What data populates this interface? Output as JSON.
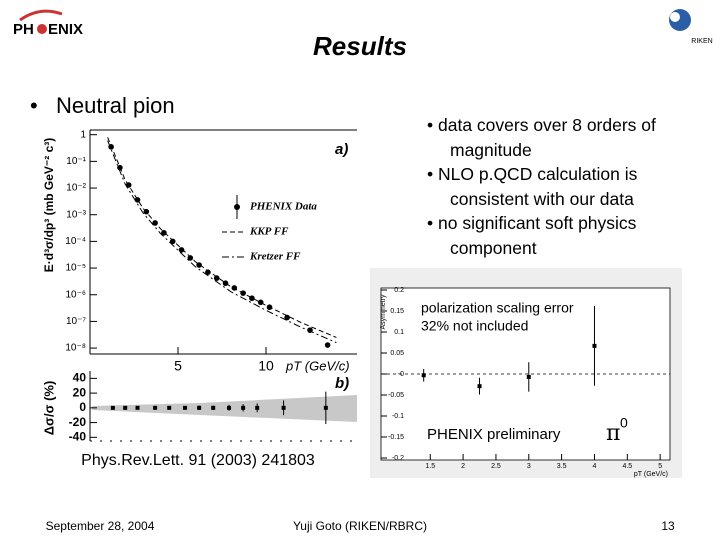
{
  "header": {
    "logo_left": "PH",
    "logo_right": "ENIX",
    "riken": "RIKEN"
  },
  "title": "Results",
  "bullet": "Neutral pion",
  "notes": [
    "data covers over 8 orders of magnitude",
    "NLO p.QCD calculation is consistent with our data",
    "no significant soft physics component"
  ],
  "reference": "Phys.Rev.Lett. 91 (2003) 241803",
  "footer": {
    "date": "September 28, 2004",
    "author": "Yuji Goto (RIKEN/RBRC)",
    "page": "13"
  },
  "chart_data": [
    {
      "type": "scatter",
      "log_y": true,
      "panel_label": "a)",
      "ylabel": "E·d³σ/dp³ (mb GeV⁻² c³)",
      "xlabel": "pT (GeV/c)",
      "xlim": [
        0,
        15
      ],
      "ylim": [
        6e-09,
        1.5
      ],
      "xticks": [
        5,
        10
      ],
      "yticks": [
        1,
        {
          "value": 0.1,
          "label": "10⁻¹"
        },
        {
          "value": 0.01,
          "label": "10⁻²"
        },
        {
          "value": 0.001,
          "label": "10⁻³"
        },
        {
          "value": 0.0001,
          "label": "10⁻⁴"
        },
        {
          "value": 1e-05,
          "label": "10⁻⁵"
        },
        {
          "value": 1e-06,
          "label": "10⁻⁶"
        },
        {
          "value": 1e-07,
          "label": "10⁻⁷"
        },
        {
          "value": 1e-08,
          "label": "10⁻⁸"
        }
      ],
      "series": [
        {
          "name": "PHENIX Data",
          "color": "#000000",
          "style": "points",
          "x": [
            1.2,
            1.7,
            2.2,
            2.7,
            3.2,
            3.7,
            4.2,
            4.7,
            5.2,
            5.7,
            6.2,
            6.7,
            7.2,
            7.7,
            8.2,
            8.7,
            9.2,
            9.7,
            10.2,
            11.2,
            12.5,
            13.5
          ],
          "values": [
            0.35,
            0.058,
            0.013,
            0.0036,
            0.0013,
            0.00049,
            0.00021,
            0.0001,
            4.8e-05,
            2.4e-05,
            1.3e-05,
            7e-06,
            4.2e-06,
            2.7e-06,
            1.8e-06,
            1.15e-06,
            7.4e-07,
            5.2e-07,
            3.4e-07,
            1.4e-07,
            4.7e-08,
            1.3e-08
          ]
        },
        {
          "name": "KKP FF",
          "color": "#000000",
          "style": "dashed",
          "x": [
            1,
            2,
            3,
            4,
            6,
            8,
            10,
            12,
            14
          ],
          "values": [
            0.8,
            0.02,
            0.0018,
            0.0003,
            1.7e-05,
            2e-06,
            4e-07,
            9e-08,
            2.5e-08
          ]
        },
        {
          "name": "Kretzer FF",
          "color": "#000000",
          "style": "dashdot",
          "x": [
            1,
            2,
            3,
            4,
            6,
            8,
            10,
            12,
            14
          ],
          "values": [
            0.6,
            0.014,
            0.0012,
            0.0002,
            1.1e-05,
            1.3e-06,
            2.6e-07,
            6e-08,
            1.6e-08
          ]
        }
      ]
    },
    {
      "type": "scatter",
      "panel_label": "b)",
      "ylabel": "Δσ/σ (%)",
      "xlim": [
        0,
        15
      ],
      "ylim": [
        -45,
        50
      ],
      "yticks": [
        40,
        20,
        0,
        -20,
        -40
      ],
      "color": "#000000",
      "x": [
        1.3,
        2,
        2.7,
        3.7,
        4.5,
        5.4,
        6.2,
        7,
        7.9,
        8.7,
        9.5,
        11,
        13.4
      ],
      "values": [
        0,
        0,
        0,
        0,
        0,
        0,
        0,
        0,
        0,
        0,
        0,
        0,
        0
      ],
      "errors": [
        1,
        1,
        1.5,
        1.5,
        2,
        2,
        3,
        3,
        4,
        5,
        6,
        10,
        22
      ]
    },
    {
      "type": "scatter",
      "ylabel": "Asymmetry",
      "xlabel": "pT (GeV/c)",
      "xlim": [
        0.75,
        5.15
      ],
      "ylim": [
        -0.2,
        0.2
      ],
      "xticks": [
        1.5,
        2,
        2.5,
        3,
        3.5,
        4,
        4.5,
        5
      ],
      "yticks": [
        0.2,
        0.15,
        0.1,
        0.05,
        {
          "value": 0,
          "label": "-0"
        },
        -0.05,
        -0.1,
        -0.15,
        -0.2
      ],
      "color": "#000000",
      "x": [
        1.4,
        2.25,
        3.0,
        4.0
      ],
      "values": [
        -0.003,
        -0.029,
        -0.007,
        0.067
      ],
      "errors": [
        0.015,
        0.02,
        0.035,
        0.095
      ],
      "annotations": [
        "polarization scaling error",
        "32% not included",
        "PHENIX preliminary"
      ],
      "particle": "π",
      "particle_sup": "0"
    }
  ]
}
